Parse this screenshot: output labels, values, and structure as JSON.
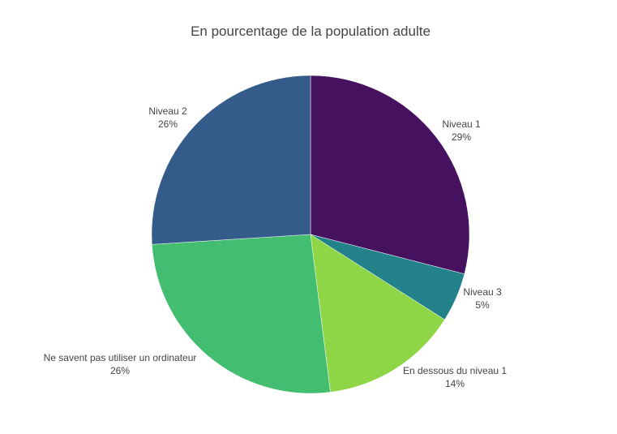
{
  "chart_data": {
    "type": "pie",
    "title": "En pourcentage de la population adulte",
    "start_angle": "top",
    "direction": "clockwise",
    "slices": [
      {
        "label": "Niveau 1",
        "value": 29,
        "text": "29%",
        "color": "#46125f"
      },
      {
        "label": "Niveau 3",
        "value": 5,
        "text": "5%",
        "color": "#23818a"
      },
      {
        "label": "En dessous du niveau 1",
        "value": 14,
        "text": "14%",
        "color": "#8ed645"
      },
      {
        "label": "Ne savent pas utiliser un ordinateur",
        "value": 26,
        "text": "26%",
        "color": "#43bd6f"
      },
      {
        "label": "Niveau 2",
        "value": 26,
        "text": "26%",
        "color": "#355b8b"
      }
    ]
  }
}
